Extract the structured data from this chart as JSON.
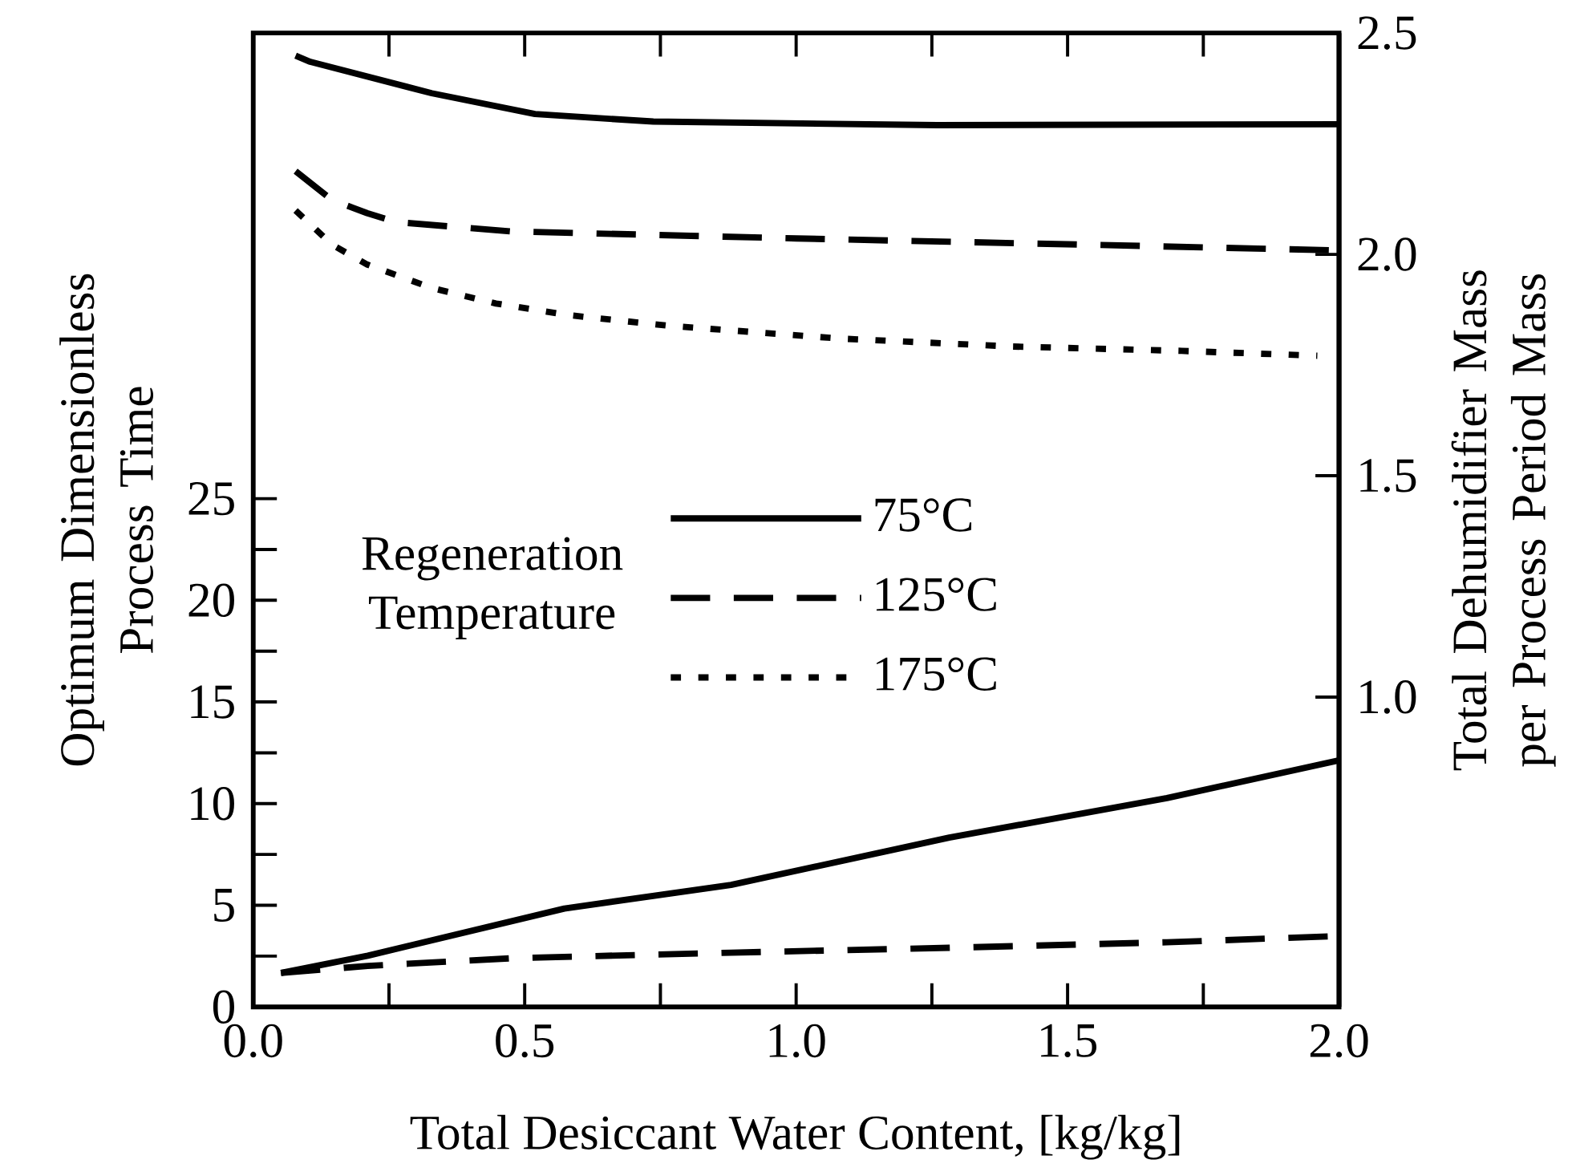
{
  "chart_data": {
    "type": "line",
    "xlabel": "Total Desiccant Water Content, [kg/kg]",
    "ylabel": "Optimum Dimensionless Process Time",
    "y2label": "Total Dehumidifier Mass per Process Period Mass",
    "legend_title": "Regeneration Temperature",
    "legend": "center",
    "marker": "none",
    "xlim": [
      0,
      2.0
    ],
    "xticks": [
      {
        "value": 0,
        "label": "0.0"
      },
      {
        "value": 0.25,
        "label": null
      },
      {
        "value": 0.5,
        "label": "0.5"
      },
      {
        "value": 0.75,
        "label": null
      },
      {
        "value": 1.0,
        "label": "1.0"
      },
      {
        "value": 1.25,
        "label": null
      },
      {
        "value": 1.5,
        "label": "1.5"
      },
      {
        "value": 1.75,
        "label": null
      },
      {
        "value": 2.0,
        "label": "2.0"
      }
    ],
    "ylim": [
      0,
      47.9
    ],
    "yticks": [
      0,
      {
        "value": 2.5,
        "label": null
      },
      5,
      {
        "value": 7.5,
        "label": null
      },
      10,
      {
        "value": 12.5,
        "label": null
      },
      15,
      {
        "value": 17.5,
        "label": null
      },
      20,
      {
        "value": 22.5,
        "label": null
      },
      25
    ],
    "y2lim": [
      0.3,
      2.5
    ],
    "y2ticks": [
      {
        "value": 1.0,
        "label": "1.0"
      },
      {
        "value": 1.5,
        "label": "1.5"
      },
      {
        "value": 2.0,
        "label": "2.0"
      },
      {
        "value": 2.5,
        "label": "2.5"
      }
    ],
    "series": [
      {
        "name": "75°C",
        "color": "#000000",
        "line_style": "solid",
        "axis": "y2",
        "x": [
          0.078,
          0.105,
          0.329,
          0.519,
          0.737,
          1.26,
          2.0
        ],
        "values": [
          2.449,
          2.435,
          2.364,
          2.317,
          2.3,
          2.292,
          2.294
        ]
      },
      {
        "name": "125°C",
        "color": "#000000",
        "line_style": "dashed",
        "axis": "y2",
        "x": [
          0.078,
          0.145,
          0.21,
          0.263,
          0.474,
          1.0,
          1.53,
          2.0
        ],
        "values": [
          2.188,
          2.123,
          2.093,
          2.073,
          2.052,
          2.036,
          2.022,
          2.009
        ]
      },
      {
        "name": "175°C",
        "color": "#000000",
        "line_style": "dotted",
        "axis": "y2",
        "x": [
          0.078,
          0.145,
          0.21,
          0.329,
          0.447,
          0.579,
          0.763,
          1.079,
          1.395,
          1.71,
          1.96
        ],
        "values": [
          2.099,
          2.022,
          1.977,
          1.924,
          1.889,
          1.863,
          1.839,
          1.81,
          1.792,
          1.782,
          1.771
        ]
      },
      {
        "color": "#000000",
        "line_style": "solid",
        "x": [
          0.051,
          0.211,
          0.573,
          0.88,
          1.282,
          1.683,
          2.0
        ],
        "values": [
          1.67,
          2.52,
          4.84,
          6.0,
          8.33,
          10.27,
          12.13
        ]
      },
      {
        "color": "#000000",
        "line_style": "dashed",
        "x": [
          0.051,
          0.211,
          0.479,
          0.88,
          1.282,
          1.683,
          2.0
        ],
        "values": [
          1.67,
          2.02,
          2.4,
          2.67,
          2.91,
          3.18,
          3.49
        ]
      }
    ]
  }
}
